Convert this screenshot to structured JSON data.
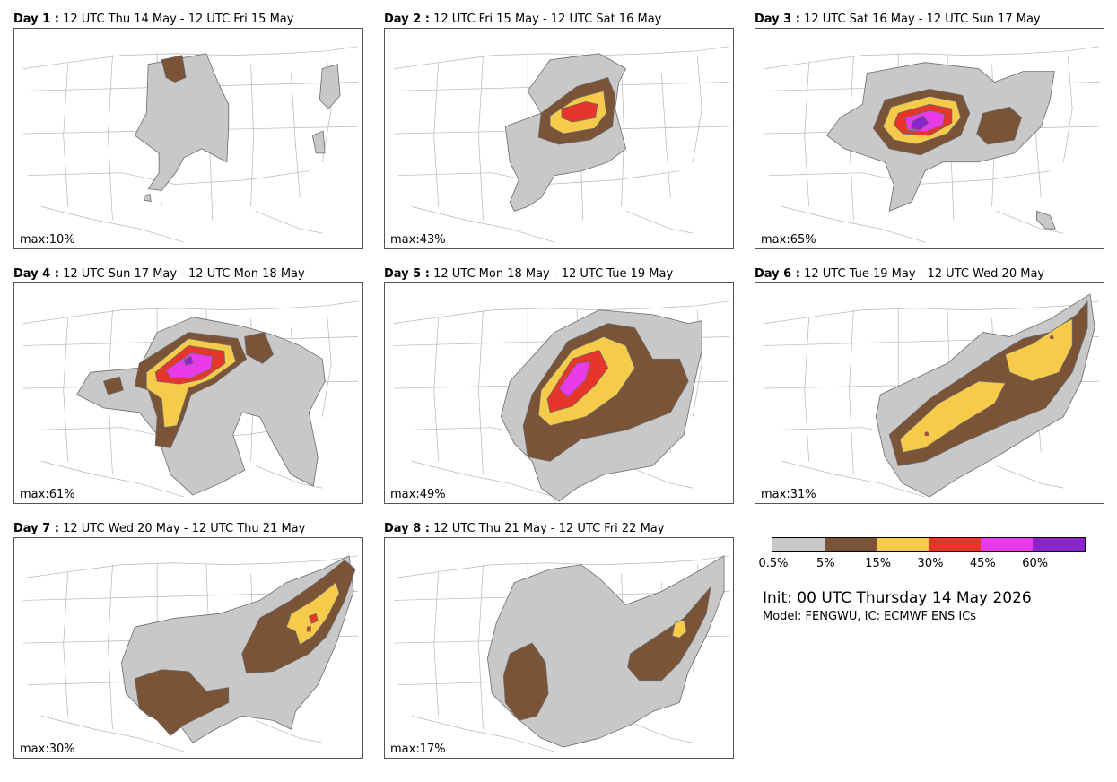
{
  "colors": {
    "c05": "#c8c8c8",
    "c5": "#7b5337",
    "c15": "#f7cb4a",
    "c30": "#e8352b",
    "c45": "#e83ae8",
    "c60": "#8a24cc",
    "outline": "#6a6a6a",
    "stateLine": "#b5b5b5"
  },
  "panels": [
    {
      "day_label": "Day 1 :",
      "period": "12 UTC Thu 14 May - 12 UTC Fri 15 May",
      "max": "max:10%"
    },
    {
      "day_label": "Day 2 :",
      "period": "12 UTC Fri 15 May - 12 UTC Sat 16 May",
      "max": "max:43%"
    },
    {
      "day_label": "Day 3 :",
      "period": "12 UTC Sat 16 May - 12 UTC Sun 17 May",
      "max": "max:65%"
    },
    {
      "day_label": "Day 4 :",
      "period": "12 UTC Sun 17 May - 12 UTC Mon 18 May",
      "max": "max:61%"
    },
    {
      "day_label": "Day 5 :",
      "period": "12 UTC Mon 18 May - 12 UTC Tue 19 May",
      "max": "max:49%"
    },
    {
      "day_label": "Day 6 :",
      "period": "12 UTC Tue 19 May - 12 UTC Wed 20 May",
      "max": "max:31%"
    },
    {
      "day_label": "Day 7 :",
      "period": "12 UTC Wed 20 May - 12 UTC Thu 21 May",
      "max": "max:30%"
    },
    {
      "day_label": "Day 8 :",
      "period": "12 UTC Thu 21 May - 12 UTC Fri 22 May",
      "max": "max:17%"
    }
  ],
  "legend": {
    "ticks": [
      "0.5%",
      "5%",
      "15%",
      "30%",
      "45%",
      "60%"
    ],
    "colors": [
      "#c8c8c8",
      "#7b5337",
      "#f7cb4a",
      "#e8352b",
      "#e83ae8",
      "#8a24cc"
    ]
  },
  "init_text": "Init: 00 UTC Thursday 14 May 2026",
  "model_text": "Model: FENGWU, IC: ECMWF ENS ICs"
}
